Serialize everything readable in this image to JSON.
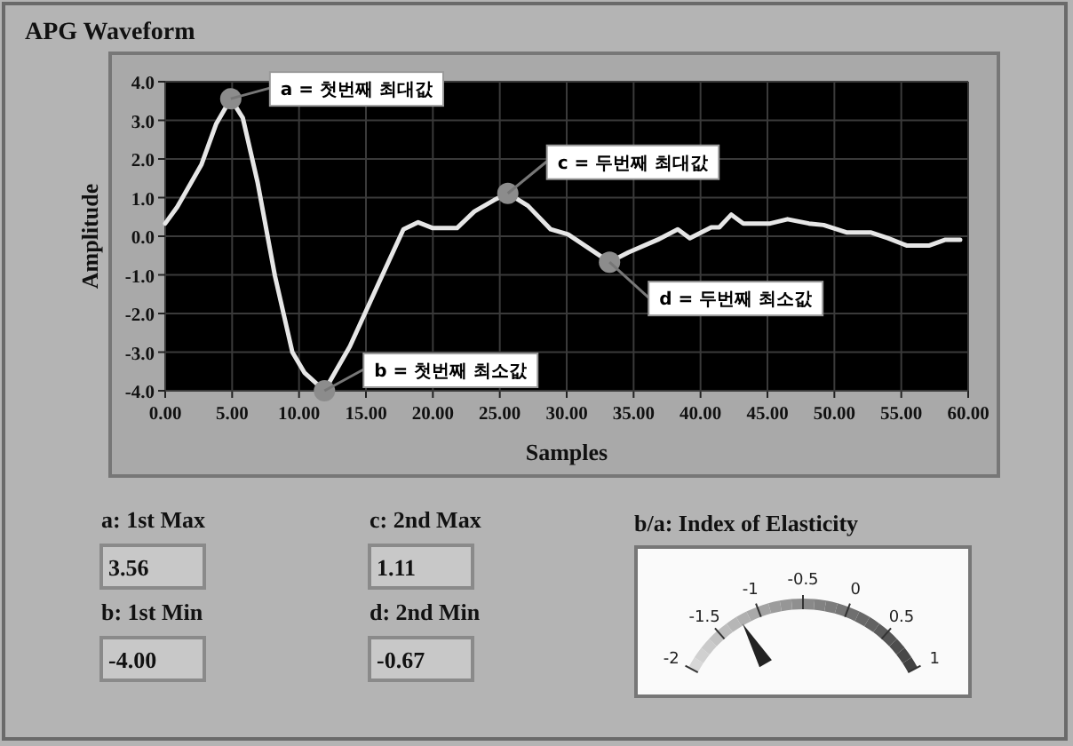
{
  "chart_data": [
    {
      "type": "line",
      "title": "APG Waveform",
      "xlabel": "Samples",
      "ylabel": "Amplitude",
      "xlim": [
        0,
        60
      ],
      "ylim": [
        -4,
        4
      ],
      "xticks": [
        {
          "value": 0,
          "label": "0.00"
        },
        {
          "value": 5,
          "label": "5.00"
        },
        {
          "value": 10,
          "label": "10.00"
        },
        {
          "value": 15,
          "label": "15.00"
        },
        {
          "value": 20,
          "label": "20.00"
        },
        {
          "value": 25,
          "label": "25.00"
        },
        {
          "value": 30,
          "label": "30.00"
        },
        {
          "value": 35,
          "label": "35.00"
        },
        {
          "value": 40,
          "label": "40.00"
        },
        {
          "value": 45,
          "label": "45.00"
        },
        {
          "value": 50,
          "label": "50.00"
        },
        {
          "value": 55,
          "label": "55.00"
        },
        {
          "value": 60,
          "label": "60.00"
        }
      ],
      "yticks": [
        {
          "value": 4,
          "label": "4.0"
        },
        {
          "value": 3,
          "label": "3.0"
        },
        {
          "value": 2,
          "label": "2.0"
        },
        {
          "value": 1,
          "label": "1.0"
        },
        {
          "value": 0,
          "label": "0.0"
        },
        {
          "value": -1,
          "label": "-1.0"
        },
        {
          "value": -2,
          "label": "-2.0"
        },
        {
          "value": -3,
          "label": "-3.0"
        },
        {
          "value": -4,
          "label": "-4.0"
        }
      ],
      "grid": true,
      "series": [
        {
          "type": "line",
          "color": "#e6e6e6",
          "x": [
            0,
            0.9,
            2.7,
            3.8,
            4.9,
            5.8,
            6.9,
            8.2,
            9.5,
            10.4,
            11.9,
            13.8,
            16,
            17.8,
            18.9,
            20,
            21.8,
            23.1,
            24.6,
            25.6,
            27.1,
            28.8,
            30.1,
            33.2,
            34.6,
            36.8,
            38.3,
            39.2,
            40.8,
            41.4,
            42.3,
            43.2,
            45.2,
            46.5,
            48.1,
            49.2,
            50.9,
            52.7,
            54,
            55.4,
            57.1,
            58.3,
            59.4
          ],
          "values": [
            0.33,
            0.76,
            1.85,
            2.9,
            3.56,
            3.06,
            1.4,
            -1.03,
            -3.0,
            -3.53,
            -4.0,
            -2.85,
            -1.18,
            0.18,
            0.36,
            0.21,
            0.21,
            0.64,
            0.94,
            1.11,
            0.79,
            0.18,
            0.05,
            -0.67,
            -0.42,
            -0.09,
            0.18,
            -0.05,
            0.23,
            0.23,
            0.56,
            0.33,
            0.33,
            0.44,
            0.33,
            0.29,
            0.1,
            0.1,
            -0.05,
            -0.24,
            -0.24,
            -0.09,
            -0.09
          ]
        },
        {
          "type": "scatter",
          "color": "#8c8c8c",
          "marker": "circle",
          "x": [
            4.9,
            11.9,
            25.6,
            33.2
          ],
          "values": [
            3.56,
            -4.0,
            1.11,
            -0.67
          ]
        }
      ],
      "annotations": [
        {
          "text": "a = 첫번째 최대값",
          "x": 4.9,
          "y": 3.56
        },
        {
          "text": "b = 첫번째 최소값",
          "x": 11.9,
          "y": -4.0
        },
        {
          "text": "c = 두번째 최대값",
          "x": 25.6,
          "y": 1.11
        },
        {
          "text": "d = 두번째 최소값",
          "x": 33.2,
          "y": -0.67
        }
      ]
    },
    {
      "type": "other",
      "annotations": [
        "a: 1st Max",
        "3.56",
        "b: 1st Min",
        "-4.00",
        "c: 2nd Max",
        "1.11",
        "d: 2nd Min",
        "-0.67"
      ]
    },
    {
      "type": "other",
      "title": "b/a: Index of Elasticity",
      "annotations": [
        "-2",
        "-1.5",
        "-1",
        "-0.5",
        "0",
        "0.5",
        "1"
      ]
    }
  ]
}
